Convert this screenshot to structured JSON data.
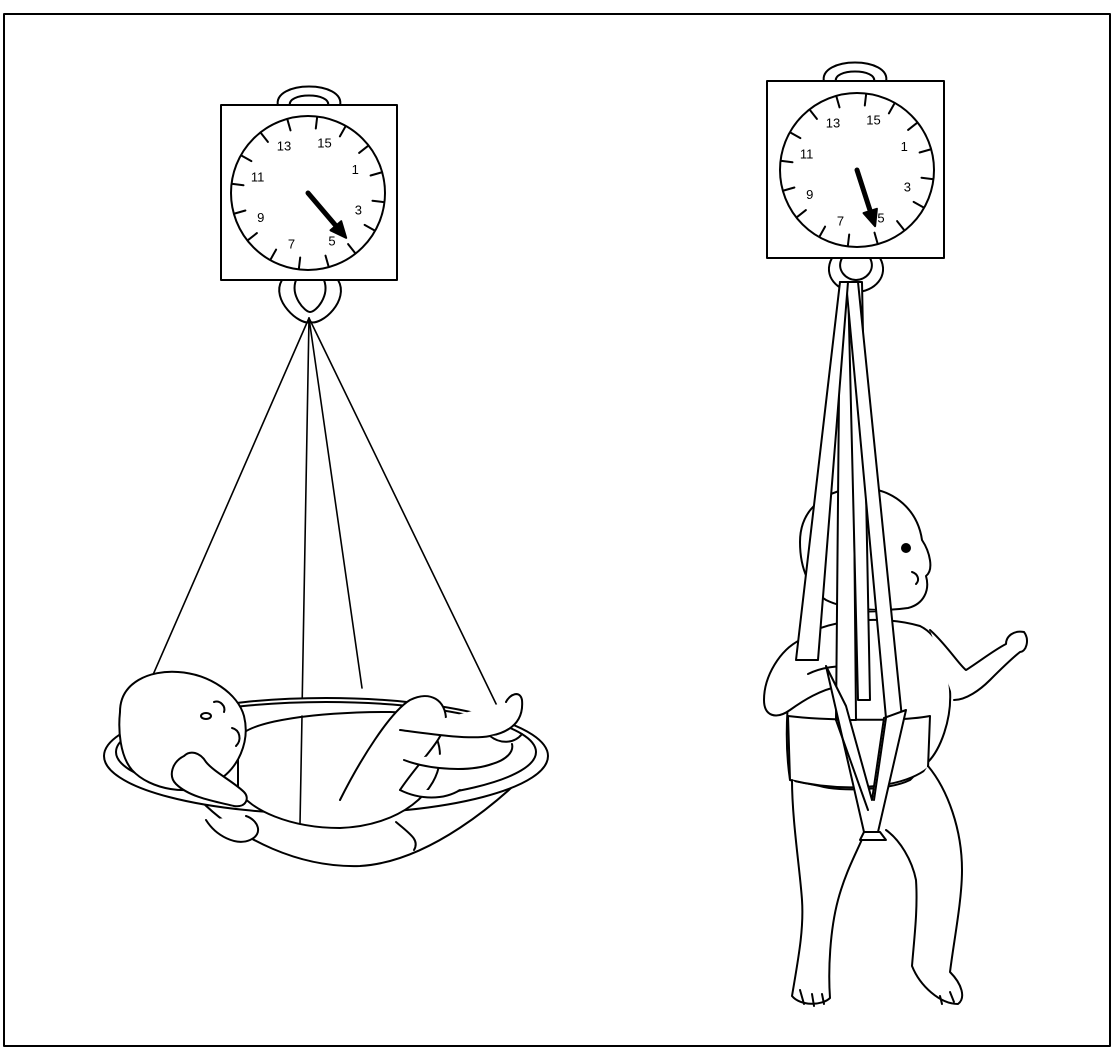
{
  "colors": {
    "line": "#000000",
    "background": "#ffffff",
    "skin": "#ffffff"
  },
  "scale_dial_labels": [
    "15",
    "1",
    "3",
    "5",
    "7",
    "9",
    "11",
    "13"
  ],
  "scales": [
    {
      "id": "left",
      "weighing_method": "basin sling",
      "dial_labels": [
        "15",
        "1",
        "3",
        "5",
        "7",
        "9",
        "11",
        "13"
      ],
      "needle_reading": 4.9
    },
    {
      "id": "right",
      "weighing_method": "weighing pants harness",
      "dial_labels": [
        "15",
        "1",
        "3",
        "5",
        "7",
        "9",
        "11",
        "13"
      ],
      "needle_reading": 5.9
    }
  ]
}
